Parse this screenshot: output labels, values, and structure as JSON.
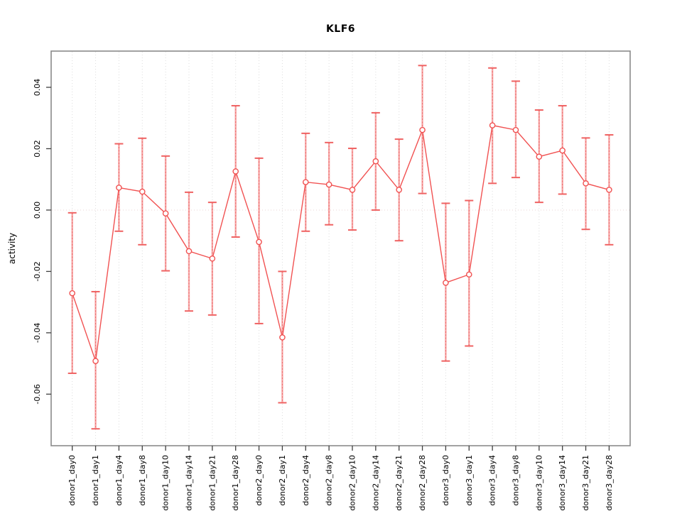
{
  "chart_data": {
    "type": "line",
    "title": "KLF6",
    "xlabel": "",
    "ylabel": "activity",
    "legend": "none",
    "grid": "vertical-dotted",
    "zero_line": true,
    "ylim": [
      -0.0768,
      0.0518
    ],
    "yticks": {
      "values": [
        0.04,
        0.02,
        0.0,
        -0.02,
        -0.04,
        -0.06
      ],
      "labels": [
        "0.04",
        "0.02",
        "0.00",
        "-0.02",
        "-0.04",
        "-0.06"
      ]
    },
    "categories": [
      "donor1_day0",
      "donor1_day1",
      "donor1_day4",
      "donor1_day8",
      "donor1_day10",
      "donor1_day14",
      "donor1_day21",
      "donor1_day28",
      "donor2_day0",
      "donor2_day1",
      "donor2_day4",
      "donor2_day8",
      "donor2_day10",
      "donor2_day14",
      "donor2_day21",
      "donor2_day28",
      "donor3_day0",
      "donor3_day1",
      "donor3_day4",
      "donor3_day8",
      "donor3_day10",
      "donor3_day14",
      "donor3_day21",
      "donor3_day28"
    ],
    "series": [
      {
        "name": "activity",
        "values": [
          -0.0271,
          -0.0492,
          0.0073,
          0.006,
          -0.0011,
          -0.0134,
          -0.0158,
          0.0126,
          -0.0104,
          -0.0415,
          0.0091,
          0.0083,
          0.0066,
          0.0159,
          0.0066,
          0.0261,
          -0.0237,
          -0.021,
          0.0276,
          0.0261,
          0.0174,
          0.0194,
          0.0087,
          0.0066
        ],
        "error_high": [
          -0.0009,
          -0.0266,
          0.0216,
          0.0234,
          0.0176,
          0.0058,
          0.0025,
          0.034,
          0.0169,
          -0.02,
          0.025,
          0.022,
          0.0201,
          0.0317,
          0.0231,
          0.0471,
          0.0022,
          0.0031,
          0.0463,
          0.042,
          0.0326,
          0.034,
          0.0235,
          0.0245
        ],
        "error_low": [
          -0.0532,
          -0.0713,
          -0.0069,
          -0.0113,
          -0.0198,
          -0.0329,
          -0.0342,
          -0.0088,
          -0.037,
          -0.0628,
          -0.0069,
          -0.0048,
          -0.0065,
          0.0,
          -0.01,
          0.0054,
          -0.0492,
          -0.0443,
          0.0087,
          0.0106,
          0.0025,
          0.0052,
          -0.0063,
          -0.0113
        ]
      }
    ],
    "colors": {
      "series_line": "#f15252",
      "point_stroke": "#f15252",
      "point_fill": "#ffffff",
      "error_bar": "#f6a8a8",
      "error_bar_dash": "#ee6b6b",
      "error_cap": "#ef6262",
      "gridline": "#dcdcdc",
      "zero_line": "#e9d6d6",
      "plot_border": "#8a8a8a",
      "tick": "#3f3f3f",
      "text": "#000000"
    }
  }
}
